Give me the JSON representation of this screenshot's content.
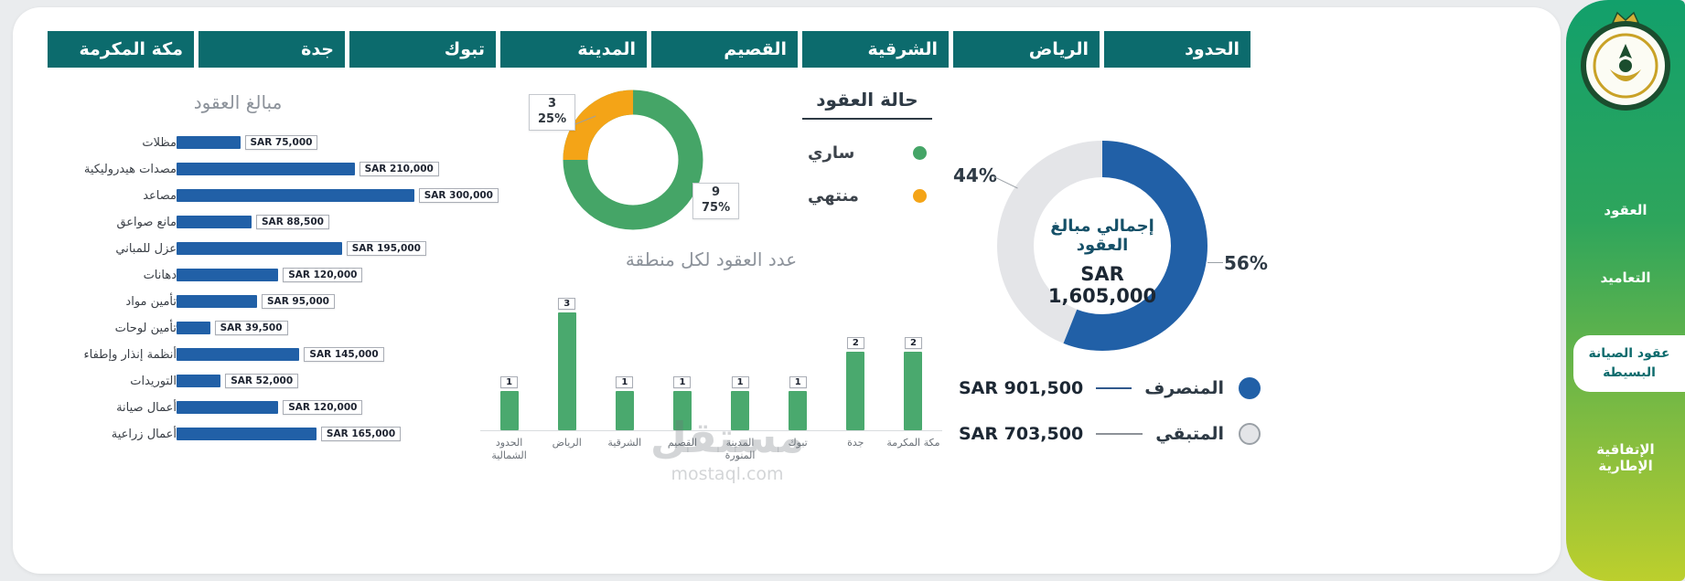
{
  "app": {
    "watermark_title": "مستقل",
    "watermark_url": "mostaql.com"
  },
  "colors": {
    "filter_teal": "#0c6b6d",
    "bar_blue": "#2160a7",
    "green": "#45a567",
    "column_green": "#4aa96e",
    "orange": "#f4a417",
    "remaining_gray": "#e4e5e8",
    "sidebar_gradient_top": "#12a06b",
    "sidebar_gradient_bottom": "#bccf2d"
  },
  "sidebar": {
    "items": [
      {
        "label": "العقود",
        "active": false
      },
      {
        "label": "التعاميد",
        "active": false
      },
      {
        "label": "عقود الصيانة البسيطة",
        "active": true
      },
      {
        "label": "الإتفاقية الإطارية",
        "active": false
      }
    ]
  },
  "filters": {
    "regions": [
      "الحدود الشمالية",
      "الرياض",
      "الشرقية",
      "القصيم",
      "المدينة المنورة",
      "تبوك",
      "جدة",
      "مكة المكرمة"
    ]
  },
  "chart_data": [
    {
      "name": "contract_amounts",
      "type": "bar",
      "orientation": "horizontal",
      "title": "مبالغ العقود",
      "categories": [
        "مظلات",
        "مصدات هيدروليكية",
        "مصاعد",
        "مانع صواعق",
        "عزل للمباني",
        "دهانات",
        "تأمين مواد",
        "تأمين لوحات",
        "أنظمة إنذار وإطفاء",
        "التوريدات",
        "أعمال صيانة",
        "أعمال زراعية"
      ],
      "values": [
        75000,
        210000,
        300000,
        88500,
        195000,
        120000,
        95000,
        39500,
        145000,
        52000,
        120000,
        165000
      ],
      "value_labels": [
        "SAR 75,000",
        "SAR 210,000",
        "SAR 300,000",
        "SAR 88,500",
        "SAR 195,000",
        "SAR 120,000",
        "SAR 95,000",
        "SAR 39,500",
        "SAR 145,000",
        "SAR 52,000",
        "SAR 120,000",
        "SAR 165,000"
      ],
      "xlim": [
        0,
        300000
      ],
      "bar_color": "#2160a7"
    },
    {
      "name": "contract_status",
      "type": "pie",
      "title": "حالة العقود",
      "slices": [
        {
          "label": "ساري",
          "count": 9,
          "pct": 75,
          "pct_label": "75%",
          "color": "#45a567"
        },
        {
          "label": "منتهي",
          "count": 3,
          "pct": 25,
          "pct_label": "25%",
          "color": "#f4a417"
        }
      ],
      "legend_position": "right"
    },
    {
      "name": "contracts_per_region",
      "type": "bar",
      "title": "عدد العقود لكل منطقة",
      "categories": [
        "الحدود الشمالية",
        "الرياض",
        "الشرقية",
        "القصيم",
        "المدينة المنورة",
        "تبوك",
        "جدة",
        "مكة المكرمة"
      ],
      "values": [
        1,
        3,
        1,
        1,
        1,
        1,
        2,
        2
      ],
      "ylim": [
        0,
        3
      ],
      "bar_color": "#4aa96e",
      "grid": false
    },
    {
      "name": "total_contract_amounts",
      "type": "pie",
      "title": "إجمالي مبالغ العقود",
      "center_title": "إجمالي مبالغ العقود",
      "center_value": "SAR 1,605,000",
      "slices": [
        {
          "label": "المنصرف",
          "value_label": "SAR 901,500",
          "pct": 56,
          "pct_label": "56%",
          "color": "#2160a7",
          "line_color": "#30588c"
        },
        {
          "label": "المتبقي",
          "value_label": "SAR 703,500",
          "pct": 44,
          "pct_label": "44%",
          "color": "#e4e5e8",
          "line_color": "#8d9298",
          "dot_border": "#9aa0a6"
        }
      ],
      "legend_position": "bottom"
    }
  ]
}
